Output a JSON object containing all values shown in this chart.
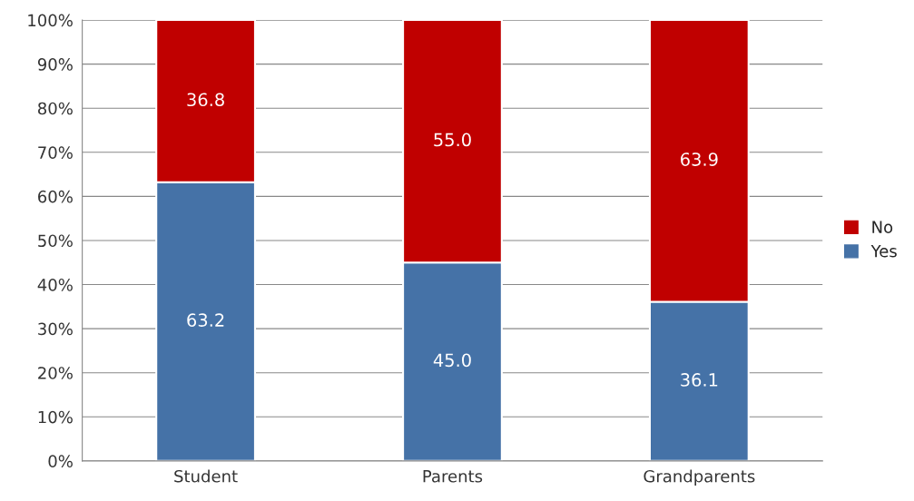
{
  "chart_data": {
    "type": "bar",
    "stacked": true,
    "categories": [
      "Student",
      "Parents",
      "Grandparents"
    ],
    "series": [
      {
        "name": "Yes",
        "color": "#4572a7",
        "values": [
          63.2,
          45.0,
          36.1
        ],
        "value_labels": [
          "63.2",
          "45.0",
          "36.1"
        ]
      },
      {
        "name": "No",
        "color": "#c00000",
        "values": [
          36.8,
          55.0,
          63.9
        ],
        "value_labels": [
          "36.8",
          "55.0",
          "63.9"
        ]
      }
    ],
    "ylim": [
      0,
      100
    ],
    "yticks": [
      {
        "value": 0,
        "label": "0%"
      },
      {
        "value": 10,
        "label": "10%"
      },
      {
        "value": 20,
        "label": "20%"
      },
      {
        "value": 30,
        "label": "30%"
      },
      {
        "value": 40,
        "label": "40%"
      },
      {
        "value": 50,
        "label": "50%"
      },
      {
        "value": 60,
        "label": "60%"
      },
      {
        "value": 70,
        "label": "70%"
      },
      {
        "value": 80,
        "label": "80%"
      },
      {
        "value": 90,
        "label": "90%"
      },
      {
        "value": 100,
        "label": "100%"
      }
    ],
    "grid": "y",
    "legend": "right"
  }
}
